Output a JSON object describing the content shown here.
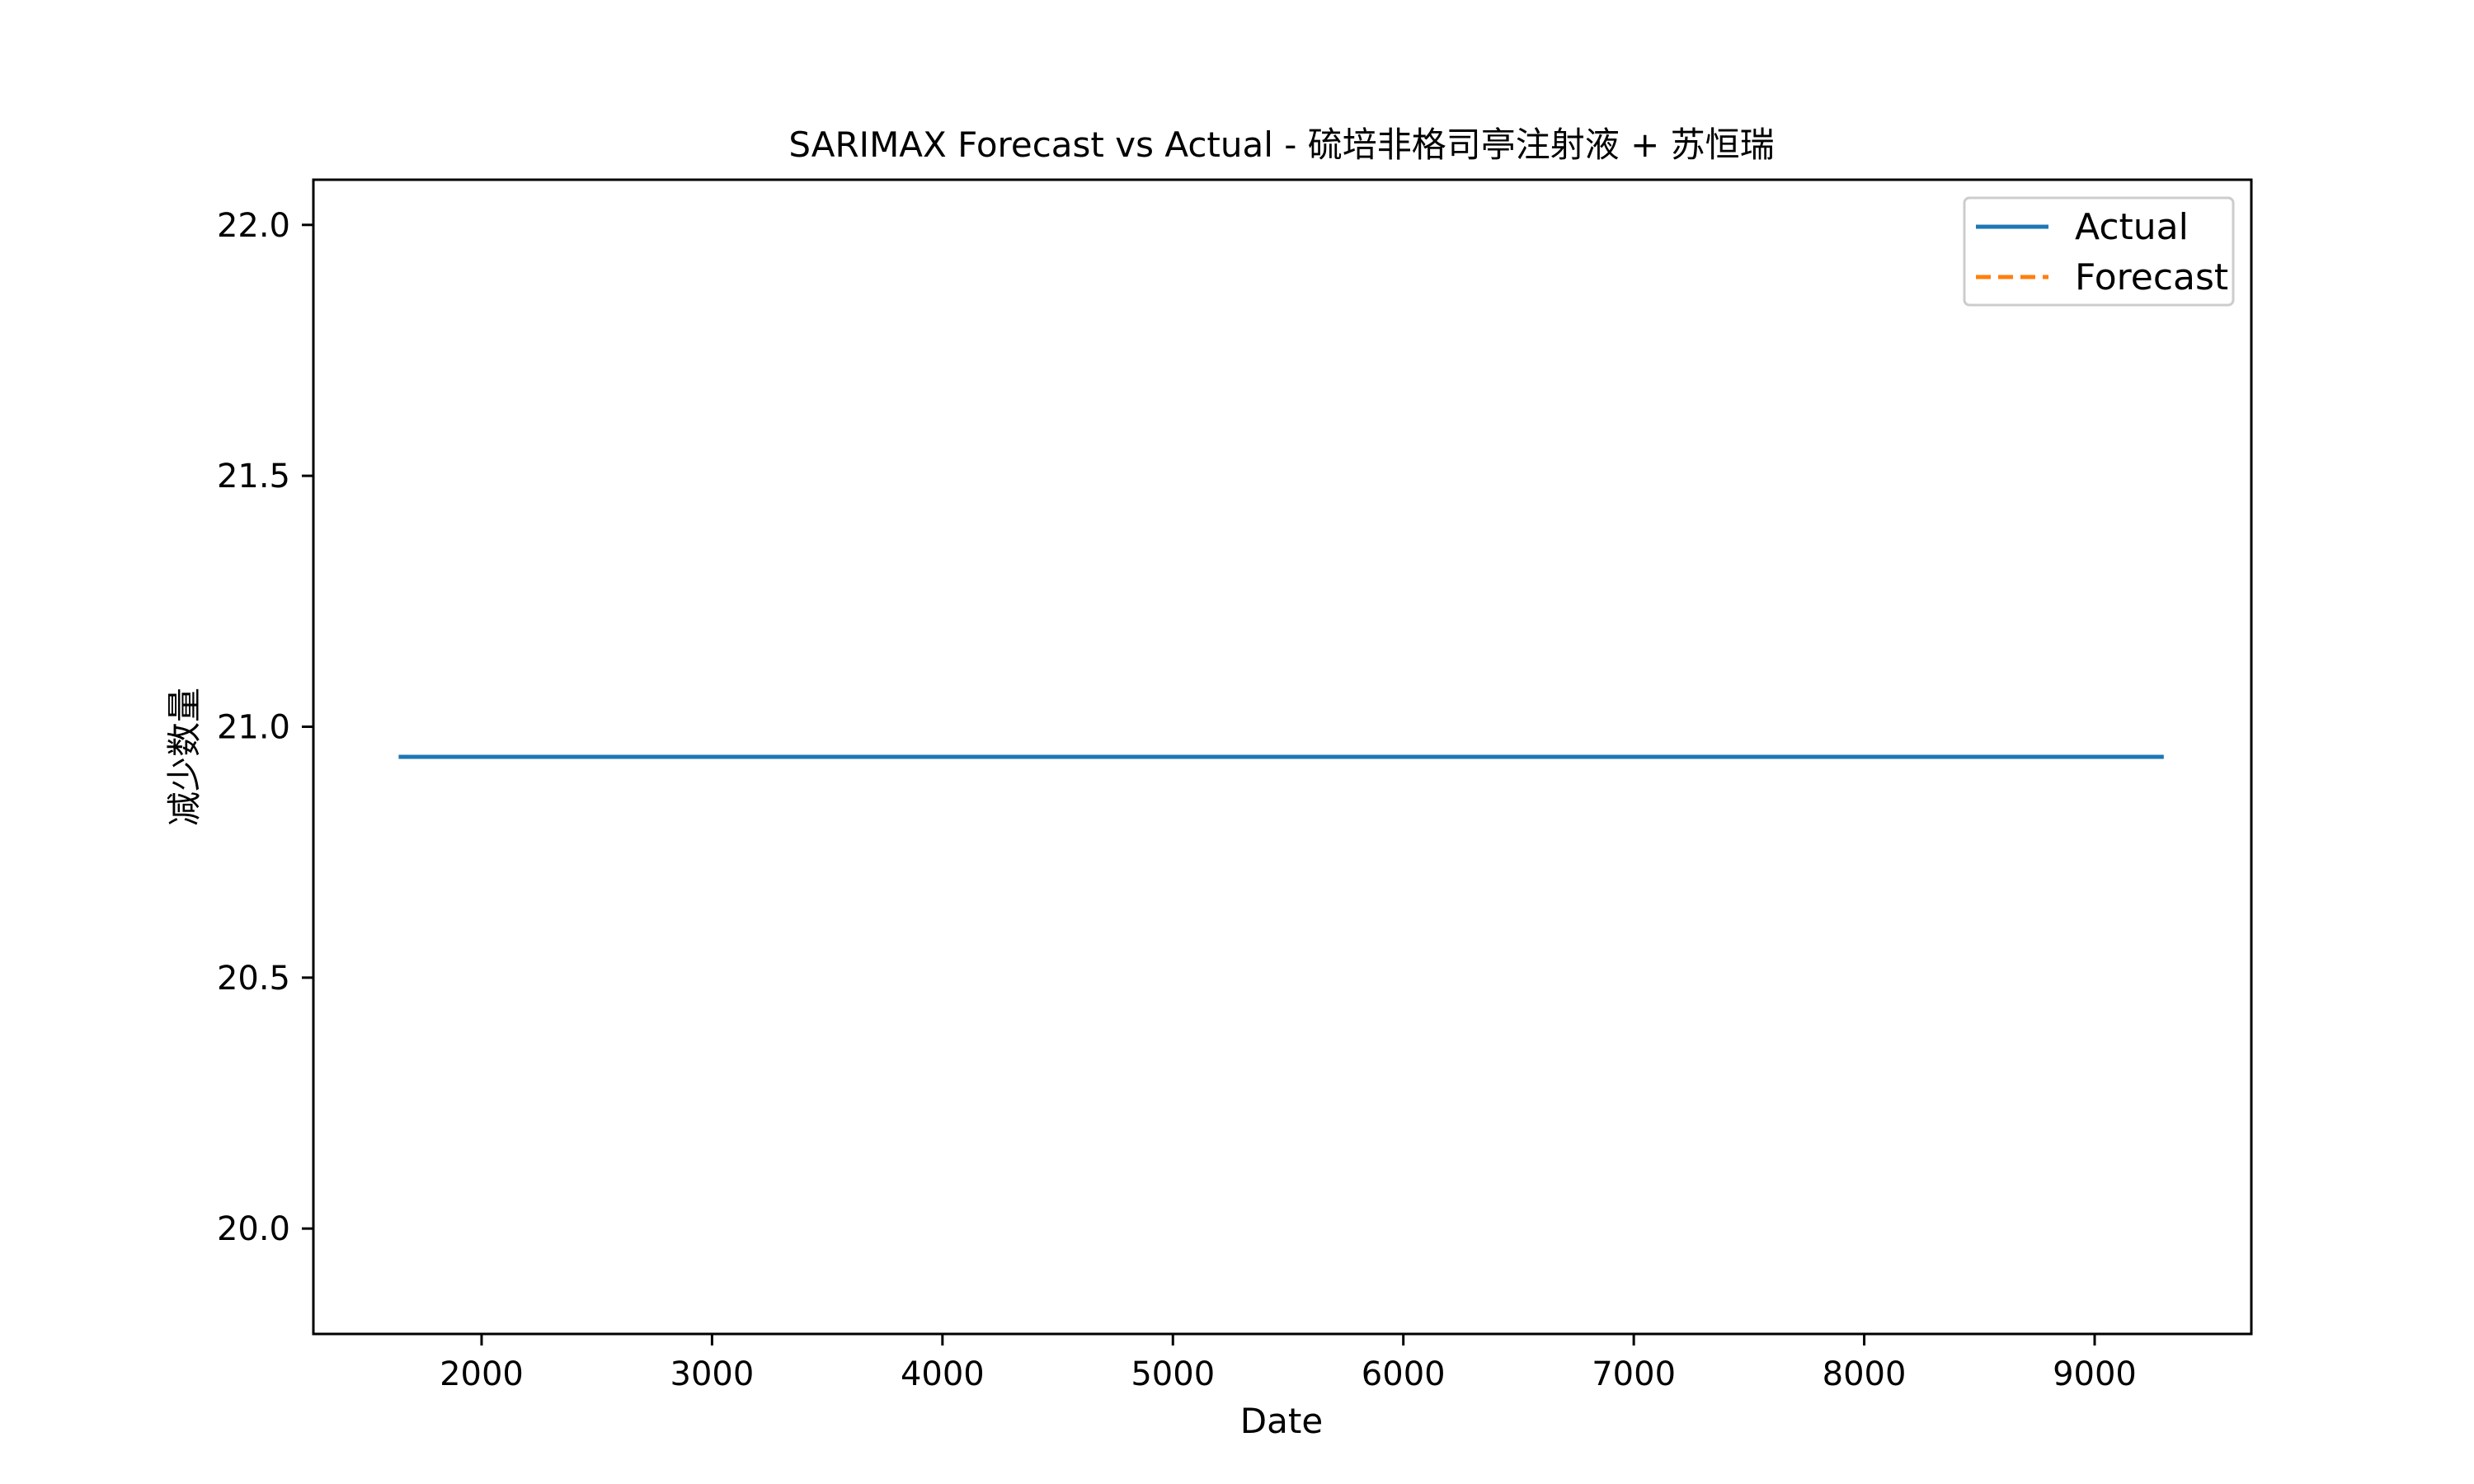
{
  "chart_data": {
    "type": "line",
    "title": "SARIMAX Forecast vs Actual - 硫培非格司亭注射液 + 苏恒瑞",
    "xlabel": "Date",
    "ylabel": "减少数量",
    "xlim": [
      1270,
      9680
    ],
    "ylim": [
      19.79,
      22.09
    ],
    "xticks": [
      2000,
      3000,
      4000,
      5000,
      6000,
      7000,
      8000,
      9000
    ],
    "yticks": [
      20.0,
      20.5,
      21.0,
      21.5,
      22.0
    ],
    "xtick_labels": [
      "2000",
      "3000",
      "4000",
      "5000",
      "6000",
      "7000",
      "8000",
      "9000"
    ],
    "ytick_labels": [
      "20.0",
      "20.5",
      "21.0",
      "21.5",
      "22.0"
    ],
    "grid": false,
    "legend_position": "top-right",
    "series": [
      {
        "name": "Actual",
        "x": [
          1640,
          9300
        ],
        "values": [
          20.94,
          20.94
        ],
        "color": "#1f77b4",
        "style": "solid"
      },
      {
        "name": "Forecast",
        "x": [],
        "values": [],
        "color": "#ff7f0e",
        "style": "dashed"
      }
    ]
  }
}
